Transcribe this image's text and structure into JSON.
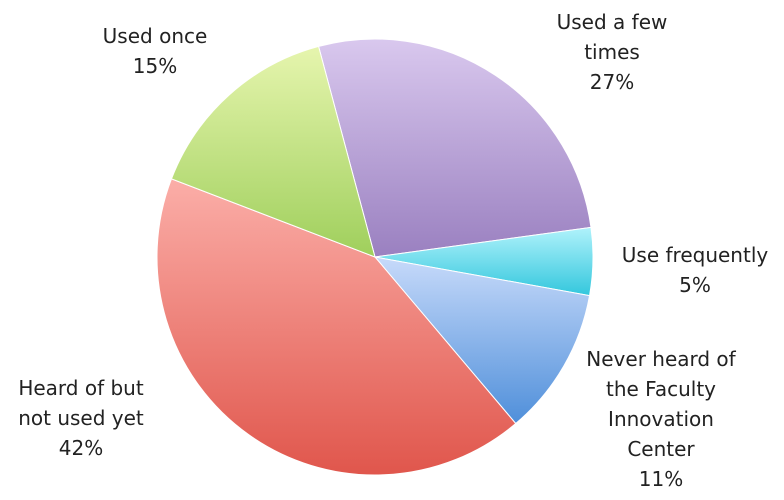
{
  "chart_data": {
    "type": "pie",
    "title": "",
    "slices": [
      {
        "label_lines": [
          "Used a few",
          "times"
        ],
        "value": 27,
        "value_label": "27%",
        "color_light": "#d9c8ee",
        "color_dark": "#9a80c0"
      },
      {
        "label_lines": [
          "Use frequently"
        ],
        "value": 5,
        "value_label": "5%",
        "color_light": "#b0f2fb",
        "color_dark": "#33c7dd"
      },
      {
        "label_lines": [
          "Never heard of",
          "the Faculty",
          "Innovation",
          "Center"
        ],
        "value": 11,
        "value_label": "11%",
        "color_light": "#c7dafa",
        "color_dark": "#4f8fda"
      },
      {
        "label_lines": [
          "Heard of but",
          "not used yet"
        ],
        "value": 42,
        "value_label": "42%",
        "color_light": "#fbaea8",
        "color_dark": "#e0564c"
      },
      {
        "label_lines": [
          "Used once"
        ],
        "value": 15,
        "value_label": "15%",
        "color_light": "#e6f5ae",
        "color_dark": "#9fcf5c"
      }
    ]
  }
}
